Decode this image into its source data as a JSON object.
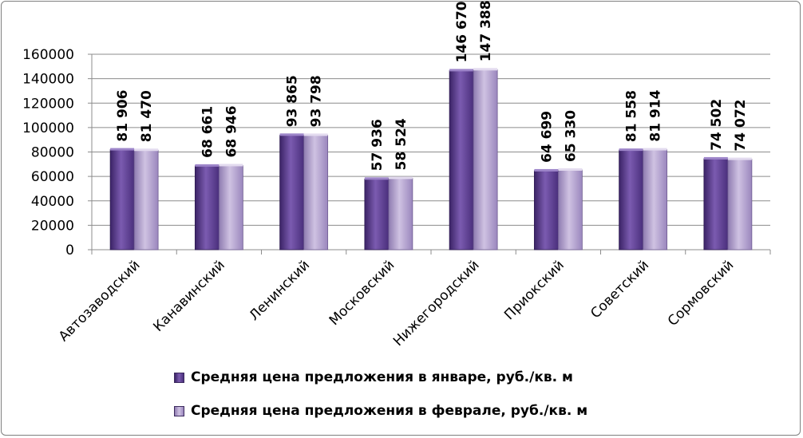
{
  "chart_data": {
    "type": "bar",
    "categories": [
      "Автозаводский",
      "Канавинский",
      "Ленинский",
      "Московский",
      "Нижегородский",
      "Приокский",
      "Советский",
      "Сормовский"
    ],
    "series": [
      {
        "name": "Средняя цена предложения в январе, руб./кв. м",
        "values": [
          81906,
          68661,
          93865,
          57936,
          146670,
          64699,
          81558,
          74502
        ],
        "labels": [
          "81 906",
          "68 661",
          "93 865",
          "57 936",
          "146 670",
          "64 699",
          "81 558",
          "74 502"
        ],
        "color": "#6a4a9e"
      },
      {
        "name": "Средняя цена предложения в феврале, руб./кв. м",
        "values": [
          81470,
          68946,
          93798,
          58524,
          147388,
          65330,
          81914,
          74072
        ],
        "labels": [
          "81 470",
          "68 946",
          "93 798",
          "58 524",
          "147 388",
          "65 330",
          "81 914",
          "74 072"
        ],
        "color": "#b5a3cf"
      }
    ],
    "ylim": [
      0,
      160000
    ],
    "yticks": [
      0,
      20000,
      40000,
      60000,
      80000,
      100000,
      120000,
      140000,
      160000
    ],
    "ytick_labels": [
      "0",
      "20000",
      "40000",
      "60000",
      "80000",
      "100000",
      "120000",
      "140000",
      "160000"
    ],
    "grid": true,
    "legend_position": "bottom"
  }
}
